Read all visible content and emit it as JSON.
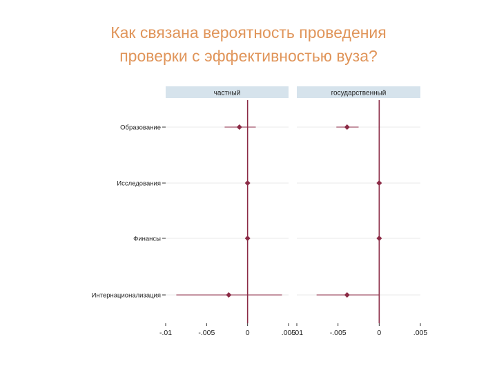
{
  "slide": {
    "title_line_1": "Как связана вероятность проведения",
    "title_line_2": "проверки с эффективностью вуза?"
  },
  "colors": {
    "title": "#e0955a",
    "accent": "#8b2a45",
    "panel_header": "#d6e3ec",
    "grid": "#e8e8e8"
  },
  "chart_data": {
    "type": "coefficient-plot",
    "categories": [
      "Образование",
      "Исследования",
      "Финансы",
      "Интернационализация"
    ],
    "xlim": [
      -0.01,
      0.005
    ],
    "x_ticks": [
      -0.01,
      -0.005,
      0,
      0.005
    ],
    "x_tick_labels": [
      "-.01",
      "-.005",
      "0",
      ".005"
    ],
    "reference_line": 0,
    "panels": [
      {
        "name": "частный",
        "points": [
          {
            "estimate": -0.001,
            "ci": [
              -0.0028,
              0.001
            ]
          },
          {
            "estimate": 0.0,
            "ci": [
              0.0,
              0.0
            ]
          },
          {
            "estimate": 0.0,
            "ci": [
              0.0,
              0.0
            ]
          },
          {
            "estimate": -0.0023,
            "ci": [
              -0.0087,
              0.0042
            ]
          }
        ]
      },
      {
        "name": "государственный",
        "points": [
          {
            "estimate": -0.0039,
            "ci": [
              -0.0052,
              -0.0025
            ]
          },
          {
            "estimate": 0.0,
            "ci": [
              0.0,
              0.0
            ]
          },
          {
            "estimate": 0.0,
            "ci": [
              0.0,
              0.0
            ]
          },
          {
            "estimate": -0.0039,
            "ci": [
              -0.0076,
              0.0
            ]
          }
        ]
      }
    ]
  }
}
